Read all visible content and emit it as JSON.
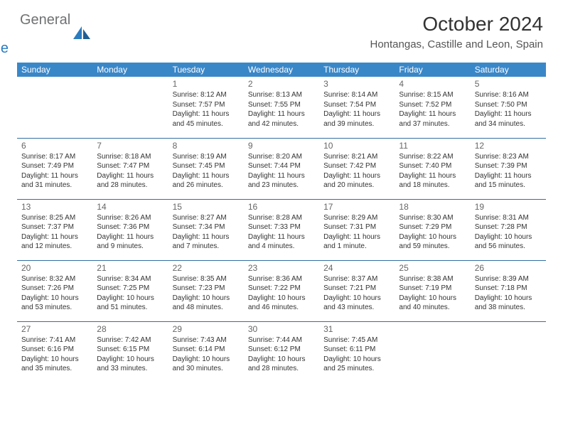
{
  "brand": {
    "part1": "General",
    "part2": "Blue"
  },
  "title": "October 2024",
  "location": "Hontangas, Castille and Leon, Spain",
  "colors": {
    "header_bg": "#3a87c8",
    "row_border": "#2f6fa3",
    "brand_gray": "#6f7173",
    "brand_blue": "#2b7bbf"
  },
  "days_of_week": [
    "Sunday",
    "Monday",
    "Tuesday",
    "Wednesday",
    "Thursday",
    "Friday",
    "Saturday"
  ],
  "weeks": [
    [
      {
        "n": "",
        "sr": "",
        "ss": "",
        "dl": ""
      },
      {
        "n": "",
        "sr": "",
        "ss": "",
        "dl": ""
      },
      {
        "n": "1",
        "sr": "Sunrise: 8:12 AM",
        "ss": "Sunset: 7:57 PM",
        "dl": "Daylight: 11 hours and 45 minutes."
      },
      {
        "n": "2",
        "sr": "Sunrise: 8:13 AM",
        "ss": "Sunset: 7:55 PM",
        "dl": "Daylight: 11 hours and 42 minutes."
      },
      {
        "n": "3",
        "sr": "Sunrise: 8:14 AM",
        "ss": "Sunset: 7:54 PM",
        "dl": "Daylight: 11 hours and 39 minutes."
      },
      {
        "n": "4",
        "sr": "Sunrise: 8:15 AM",
        "ss": "Sunset: 7:52 PM",
        "dl": "Daylight: 11 hours and 37 minutes."
      },
      {
        "n": "5",
        "sr": "Sunrise: 8:16 AM",
        "ss": "Sunset: 7:50 PM",
        "dl": "Daylight: 11 hours and 34 minutes."
      }
    ],
    [
      {
        "n": "6",
        "sr": "Sunrise: 8:17 AM",
        "ss": "Sunset: 7:49 PM",
        "dl": "Daylight: 11 hours and 31 minutes."
      },
      {
        "n": "7",
        "sr": "Sunrise: 8:18 AM",
        "ss": "Sunset: 7:47 PM",
        "dl": "Daylight: 11 hours and 28 minutes."
      },
      {
        "n": "8",
        "sr": "Sunrise: 8:19 AM",
        "ss": "Sunset: 7:45 PM",
        "dl": "Daylight: 11 hours and 26 minutes."
      },
      {
        "n": "9",
        "sr": "Sunrise: 8:20 AM",
        "ss": "Sunset: 7:44 PM",
        "dl": "Daylight: 11 hours and 23 minutes."
      },
      {
        "n": "10",
        "sr": "Sunrise: 8:21 AM",
        "ss": "Sunset: 7:42 PM",
        "dl": "Daylight: 11 hours and 20 minutes."
      },
      {
        "n": "11",
        "sr": "Sunrise: 8:22 AM",
        "ss": "Sunset: 7:40 PM",
        "dl": "Daylight: 11 hours and 18 minutes."
      },
      {
        "n": "12",
        "sr": "Sunrise: 8:23 AM",
        "ss": "Sunset: 7:39 PM",
        "dl": "Daylight: 11 hours and 15 minutes."
      }
    ],
    [
      {
        "n": "13",
        "sr": "Sunrise: 8:25 AM",
        "ss": "Sunset: 7:37 PM",
        "dl": "Daylight: 11 hours and 12 minutes."
      },
      {
        "n": "14",
        "sr": "Sunrise: 8:26 AM",
        "ss": "Sunset: 7:36 PM",
        "dl": "Daylight: 11 hours and 9 minutes."
      },
      {
        "n": "15",
        "sr": "Sunrise: 8:27 AM",
        "ss": "Sunset: 7:34 PM",
        "dl": "Daylight: 11 hours and 7 minutes."
      },
      {
        "n": "16",
        "sr": "Sunrise: 8:28 AM",
        "ss": "Sunset: 7:33 PM",
        "dl": "Daylight: 11 hours and 4 minutes."
      },
      {
        "n": "17",
        "sr": "Sunrise: 8:29 AM",
        "ss": "Sunset: 7:31 PM",
        "dl": "Daylight: 11 hours and 1 minute."
      },
      {
        "n": "18",
        "sr": "Sunrise: 8:30 AM",
        "ss": "Sunset: 7:29 PM",
        "dl": "Daylight: 10 hours and 59 minutes."
      },
      {
        "n": "19",
        "sr": "Sunrise: 8:31 AM",
        "ss": "Sunset: 7:28 PM",
        "dl": "Daylight: 10 hours and 56 minutes."
      }
    ],
    [
      {
        "n": "20",
        "sr": "Sunrise: 8:32 AM",
        "ss": "Sunset: 7:26 PM",
        "dl": "Daylight: 10 hours and 53 minutes."
      },
      {
        "n": "21",
        "sr": "Sunrise: 8:34 AM",
        "ss": "Sunset: 7:25 PM",
        "dl": "Daylight: 10 hours and 51 minutes."
      },
      {
        "n": "22",
        "sr": "Sunrise: 8:35 AM",
        "ss": "Sunset: 7:23 PM",
        "dl": "Daylight: 10 hours and 48 minutes."
      },
      {
        "n": "23",
        "sr": "Sunrise: 8:36 AM",
        "ss": "Sunset: 7:22 PM",
        "dl": "Daylight: 10 hours and 46 minutes."
      },
      {
        "n": "24",
        "sr": "Sunrise: 8:37 AM",
        "ss": "Sunset: 7:21 PM",
        "dl": "Daylight: 10 hours and 43 minutes."
      },
      {
        "n": "25",
        "sr": "Sunrise: 8:38 AM",
        "ss": "Sunset: 7:19 PM",
        "dl": "Daylight: 10 hours and 40 minutes."
      },
      {
        "n": "26",
        "sr": "Sunrise: 8:39 AM",
        "ss": "Sunset: 7:18 PM",
        "dl": "Daylight: 10 hours and 38 minutes."
      }
    ],
    [
      {
        "n": "27",
        "sr": "Sunrise: 7:41 AM",
        "ss": "Sunset: 6:16 PM",
        "dl": "Daylight: 10 hours and 35 minutes."
      },
      {
        "n": "28",
        "sr": "Sunrise: 7:42 AM",
        "ss": "Sunset: 6:15 PM",
        "dl": "Daylight: 10 hours and 33 minutes."
      },
      {
        "n": "29",
        "sr": "Sunrise: 7:43 AM",
        "ss": "Sunset: 6:14 PM",
        "dl": "Daylight: 10 hours and 30 minutes."
      },
      {
        "n": "30",
        "sr": "Sunrise: 7:44 AM",
        "ss": "Sunset: 6:12 PM",
        "dl": "Daylight: 10 hours and 28 minutes."
      },
      {
        "n": "31",
        "sr": "Sunrise: 7:45 AM",
        "ss": "Sunset: 6:11 PM",
        "dl": "Daylight: 10 hours and 25 minutes."
      },
      {
        "n": "",
        "sr": "",
        "ss": "",
        "dl": ""
      },
      {
        "n": "",
        "sr": "",
        "ss": "",
        "dl": ""
      }
    ]
  ]
}
